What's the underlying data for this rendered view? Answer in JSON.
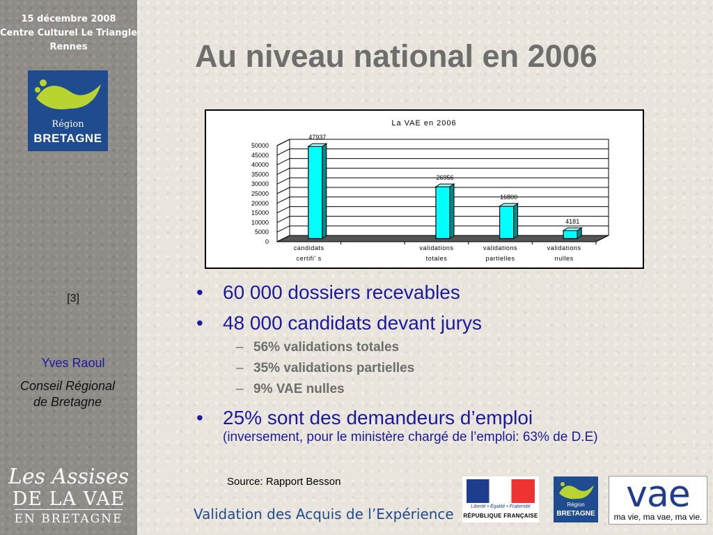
{
  "sidebar": {
    "event_lines": [
      "15 décembre 2008",
      "Centre Culturel Le Triangle",
      "Rennes"
    ],
    "logo_region": "Région",
    "logo_bretagne": "BRETAGNE",
    "page_number": "[3]",
    "author": "Yves Raoul",
    "org_line1": "Conseil Régional",
    "org_line2": "de Bretagne",
    "assises_line1": "Les Assises",
    "assises_line2": "DE LA VAE",
    "assises_line3": "EN BRETAGNE"
  },
  "slide": {
    "title": "Au niveau national en 2006",
    "bullets": [
      {
        "text": "60 000 dossiers recevables"
      },
      {
        "text": "48 000 candidats devant jurys"
      }
    ],
    "subbullets": [
      "56% validations totales",
      "35% validations partielles",
      "9% VAE nulles"
    ],
    "bullet3": "25% sont des demandeurs d’emploi",
    "bullet3_sub": "(inversement, pour le ministère chargé de l’emploi: 63% de D.E)",
    "bullet_glyph": "•",
    "dash_glyph": "–",
    "source": "Source: Rapport Besson"
  },
  "footer": {
    "text": "Validation des Acquis de l’Expérience",
    "rf_motto": "Liberté • Égalité • Fraternité",
    "rf_name": "RÉPUBLIQUE FRANÇAISE",
    "rb_region": "Région",
    "rb_bretagne": "BRETAGNE",
    "vae_big": "vae",
    "vae_slogan": "ma vie, ma vae, ma vie."
  },
  "chart_data": {
    "type": "bar",
    "title": "La VAE en 2006",
    "categories": [
      [
        "candidats",
        "certifi' s"
      ],
      [
        "",
        ""
      ],
      [
        "validations",
        "totales"
      ],
      [
        "validations",
        "partielles"
      ],
      [
        "validations",
        "nulles"
      ]
    ],
    "values": [
      47937,
      null,
      26956,
      16800,
      4181
    ],
    "data_labels": [
      "47937",
      "",
      "26956",
      "16800",
      "4181"
    ],
    "yticks": [
      0,
      5000,
      10000,
      15000,
      20000,
      25000,
      30000,
      35000,
      40000,
      45000,
      50000
    ],
    "ylim": [
      0,
      50000
    ],
    "bar_color": "#00ffff",
    "grid": true,
    "style": "3d"
  },
  "colors": {
    "title": "#6e6e6e",
    "bullet_blue": "#1a1aa0",
    "sidebar_bg": "#8f8c88",
    "brand_blue": "#1f4b8f"
  }
}
